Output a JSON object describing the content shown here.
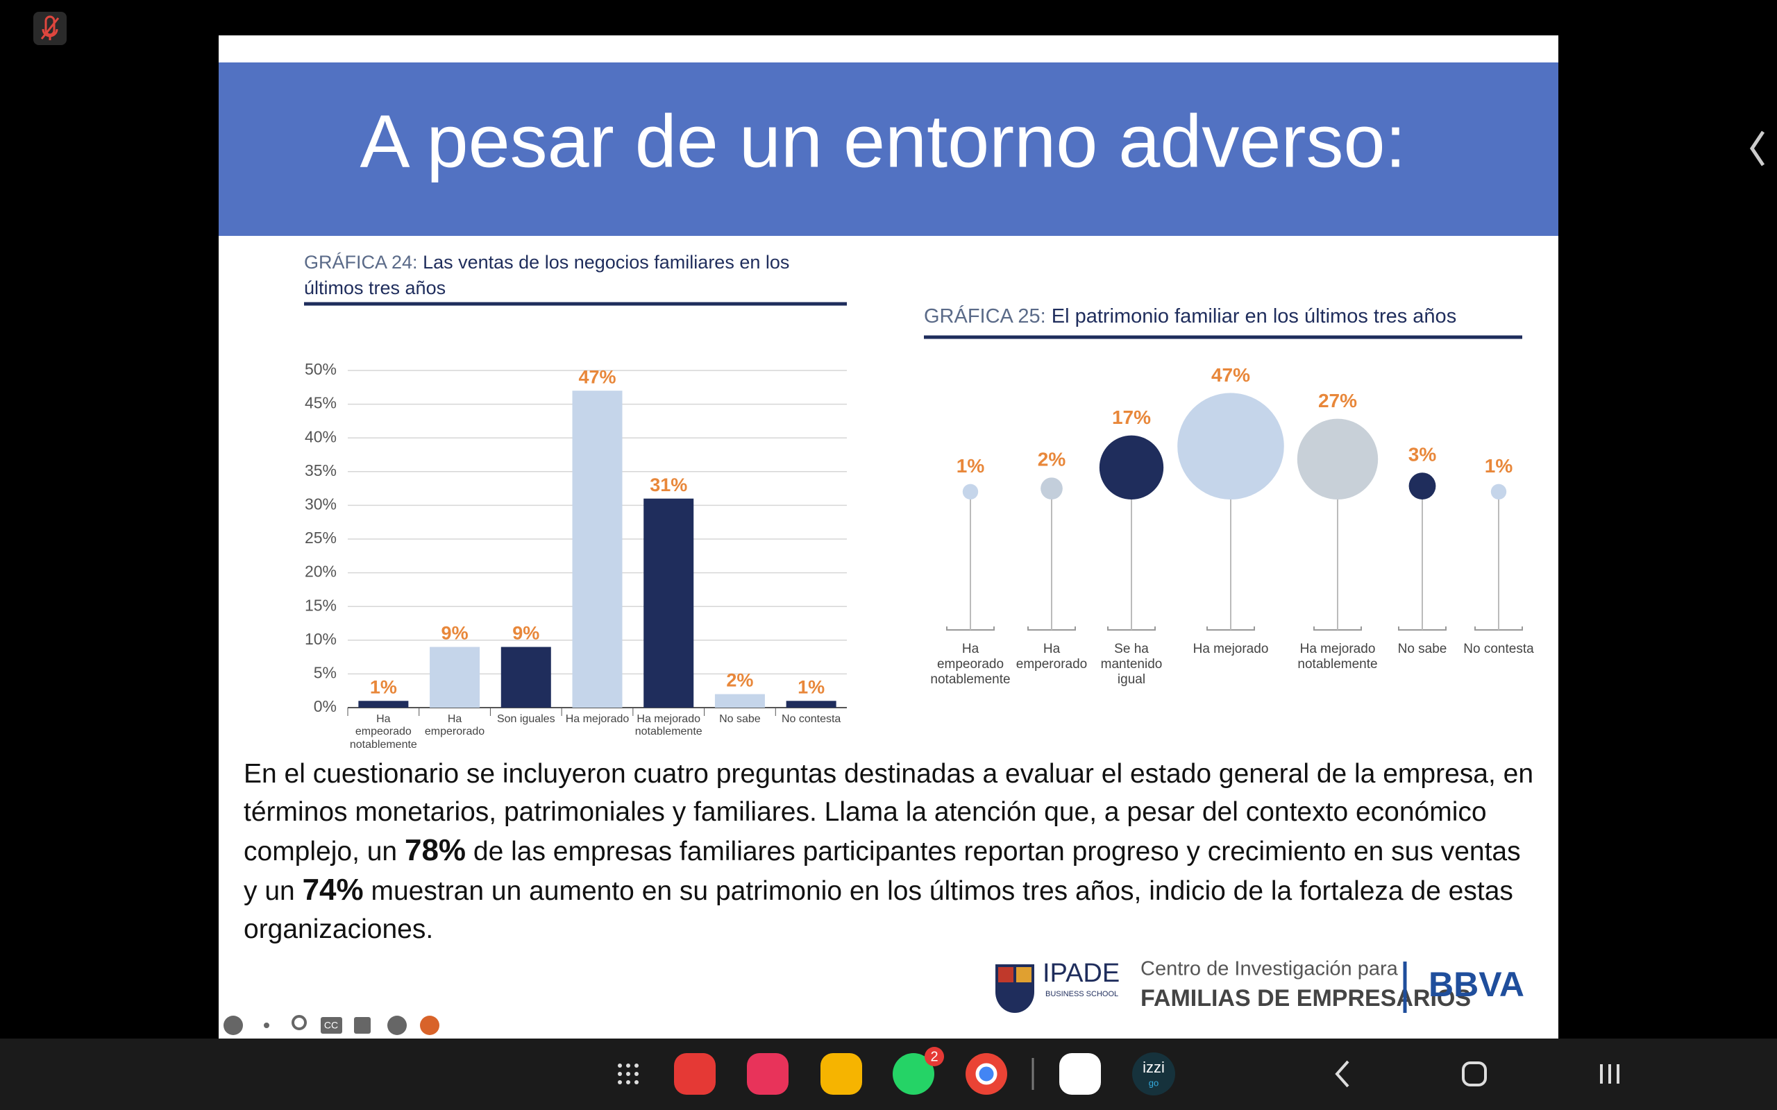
{
  "slide": {
    "title": "A pesar de un entorno adverso:"
  },
  "chart_data": [
    {
      "type": "bar",
      "title_prefix": "GRÁFICA 24:",
      "title": "Las ventas de los negocios familiares en los últimos tres años",
      "categories": [
        "Ha empeorado notablemente",
        "Ha emperorado",
        "Son iguales",
        "Ha mejorado",
        "Ha mejorado notablemente",
        "No sabe",
        "No contesta"
      ],
      "values": [
        1,
        9,
        9,
        47,
        31,
        2,
        1
      ],
      "value_labels": [
        "1%",
        "9%",
        "9%",
        "47%",
        "31%",
        "2%",
        "1%"
      ],
      "colors": [
        "#1f2d5c",
        "#c5d5ea",
        "#1f2d5c",
        "#c5d5ea",
        "#1f2d5c",
        "#c5d5ea",
        "#1f2d5c"
      ],
      "ylim": [
        0,
        50
      ],
      "yticks": [
        {
          "value": 0,
          "label": "0%"
        },
        {
          "value": 5,
          "label": "5%"
        },
        {
          "value": 10,
          "label": "10%"
        },
        {
          "value": 15,
          "label": "15%"
        },
        {
          "value": 20,
          "label": "20%"
        },
        {
          "value": 25,
          "label": "25%"
        },
        {
          "value": 30,
          "label": "30%"
        },
        {
          "value": 35,
          "label": "35%"
        },
        {
          "value": 40,
          "label": "40%"
        },
        {
          "value": 45,
          "label": "45%"
        },
        {
          "value": 50,
          "label": "50%"
        }
      ],
      "grid": true
    },
    {
      "type": "lollipop",
      "title_prefix": "GRÁFICA 25:",
      "title": "El patrimonio familiar en los últimos tres años",
      "categories": [
        "Ha empeorado notablemente",
        "Ha emperorado",
        "Se ha mantenido igual",
        "Ha mejorado",
        "Ha mejorado notablemente",
        "No sabe",
        "No contesta"
      ],
      "values": [
        1,
        2,
        17,
        47,
        27,
        3,
        1
      ],
      "value_labels": [
        "1%",
        "2%",
        "17%",
        "47%",
        "27%",
        "3%",
        "1%"
      ],
      "colors": [
        "#c5d5ea",
        "#c3cedb",
        "#1f2d5c",
        "#c5d5ea",
        "#c8d0d8",
        "#1f2d5c",
        "#c5d5ea"
      ]
    }
  ],
  "body": {
    "parts": [
      "En el cuestionario se incluyeron cuatro preguntas destinadas a evaluar el estado general de la empresa, en términos monetarios, patrimoniales y familiares. Llama la atención que, a pesar del contexto económico complejo, un ",
      "78%",
      " de las empresas familiares participantes reportan progreso y crecimiento en sus ventas y un ",
      "74%",
      " muestran un aumento en su patrimonio en los últimos tres años, indicio de la fortaleza de estas organizaciones."
    ]
  },
  "footer": {
    "ipade": "IPADE",
    "school": "BUSINESS SCHOOL",
    "center": "Centro de Investigación para",
    "families": "FAMILIAS DE EMPRESARIOS",
    "bank": "BBVA"
  },
  "ui": {
    "cc": "CC",
    "badge": "2",
    "izzi": "izzi",
    "go": "go"
  }
}
